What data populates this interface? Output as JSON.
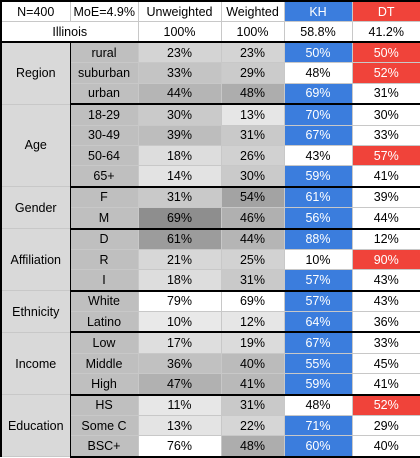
{
  "header": {
    "n_label": "N=400",
    "moe_label": "MoE=4.9%",
    "unweighted_label": "Unweighted",
    "weighted_label": "Weighted",
    "kh_label": "KH",
    "dt_label": "DT"
  },
  "subheader": {
    "state": "Illinois",
    "unweighted": "100%",
    "weighted": "100%",
    "kh": "58.8%",
    "dt": "41.2%"
  },
  "groups": [
    {
      "name": "Region",
      "rows": [
        {
          "label": "rural",
          "unweighted": "23%",
          "weighted": "23%",
          "kh": "50%",
          "dt": "50%",
          "unw_shade": "#d4d4d4",
          "w_shade": "#d4d4d4",
          "kh_color": "#3b7ddd",
          "dt_color": "#f0433a"
        },
        {
          "label": "suburban",
          "unweighted": "33%",
          "weighted": "29%",
          "kh": "48%",
          "dt": "52%",
          "unw_shade": "#c4c4c4",
          "w_shade": "#cbcbcb",
          "kh_color": "#ffffff",
          "dt_color": "#f0433a"
        },
        {
          "label": "urban",
          "unweighted": "44%",
          "weighted": "48%",
          "kh": "69%",
          "dt": "31%",
          "unw_shade": "#b5b5b5",
          "w_shade": "#adadad",
          "kh_color": "#3b7ddd",
          "dt_color": "#ffffff"
        }
      ]
    },
    {
      "name": "Age",
      "rows": [
        {
          "label": "18-29",
          "unweighted": "30%",
          "weighted": "13%",
          "kh": "70%",
          "dt": "30%",
          "unw_shade": "#cacaca",
          "w_shade": "#e6e6e6",
          "kh_color": "#3b7ddd",
          "dt_color": "#ffffff"
        },
        {
          "label": "30-49",
          "unweighted": "39%",
          "weighted": "31%",
          "kh": "67%",
          "dt": "33%",
          "unw_shade": "#bdbdbd",
          "w_shade": "#c9c9c9",
          "kh_color": "#3b7ddd",
          "dt_color": "#ffffff"
        },
        {
          "label": "50-64",
          "unweighted": "18%",
          "weighted": "26%",
          "kh": "43%",
          "dt": "57%",
          "unw_shade": "#dddddd",
          "w_shade": "#d1d1d1",
          "kh_color": "#ffffff",
          "dt_color": "#f0433a"
        },
        {
          "label": "65+",
          "unweighted": "14%",
          "weighted": "30%",
          "kh": "59%",
          "dt": "41%",
          "unw_shade": "#e3e3e3",
          "w_shade": "#cacaca",
          "kh_color": "#3b7ddd",
          "dt_color": "#ffffff"
        }
      ]
    },
    {
      "name": "Gender",
      "rows": [
        {
          "label": "F",
          "unweighted": "31%",
          "weighted": "54%",
          "kh": "61%",
          "dt": "39%",
          "unw_shade": "#c9c9c9",
          "w_shade": "#a3a3a3",
          "kh_color": "#3b7ddd",
          "dt_color": "#ffffff"
        },
        {
          "label": "M",
          "unweighted": "69%",
          "weighted": "46%",
          "kh": "56%",
          "dt": "44%",
          "unw_shade": "#8e8e8e",
          "w_shade": "#b0b0b0",
          "kh_color": "#3b7ddd",
          "dt_color": "#ffffff"
        }
      ]
    },
    {
      "name": "Affiliation",
      "rows": [
        {
          "label": "D",
          "unweighted": "61%",
          "weighted": "44%",
          "kh": "88%",
          "dt": "12%",
          "unw_shade": "#9c9c9c",
          "w_shade": "#b5b5b5",
          "kh_color": "#3b7ddd",
          "dt_color": "#ffffff"
        },
        {
          "label": "R",
          "unweighted": "21%",
          "weighted": "25%",
          "kh": "10%",
          "dt": "90%",
          "unw_shade": "#d7d7d7",
          "w_shade": "#d2d2d2",
          "kh_color": "#ffffff",
          "dt_color": "#f0433a"
        },
        {
          "label": "I",
          "unweighted": "18%",
          "weighted": "31%",
          "kh": "57%",
          "dt": "43%",
          "unw_shade": "#dddddd",
          "w_shade": "#c9c9c9",
          "kh_color": "#3b7ddd",
          "dt_color": "#ffffff"
        }
      ]
    },
    {
      "name": "Ethnicity",
      "rows": [
        {
          "label": "White",
          "unweighted": "79%",
          "weighted": "69%",
          "kh": "57%",
          "dt": "43%",
          "unw_shade": "#ffffff",
          "w_shade": "#ffffff",
          "kh_color": "#3b7ddd",
          "dt_color": "#ffffff"
        },
        {
          "label": "Latino",
          "unweighted": "10%",
          "weighted": "12%",
          "kh": "64%",
          "dt": "36%",
          "unw_shade": "#e9e9e9",
          "w_shade": "#e6e6e6",
          "kh_color": "#3b7ddd",
          "dt_color": "#ffffff"
        }
      ]
    },
    {
      "name": "Income",
      "rows": [
        {
          "label": "Low",
          "unweighted": "17%",
          "weighted": "19%",
          "kh": "67%",
          "dt": "33%",
          "unw_shade": "#dedede",
          "w_shade": "#dbdbdb",
          "kh_color": "#3b7ddd",
          "dt_color": "#ffffff"
        },
        {
          "label": "Middle",
          "unweighted": "36%",
          "weighted": "40%",
          "kh": "55%",
          "dt": "45%",
          "unw_shade": "#c1c1c1",
          "w_shade": "#bbbbbb",
          "kh_color": "#3b7ddd",
          "dt_color": "#ffffff"
        },
        {
          "label": "High",
          "unweighted": "47%",
          "weighted": "41%",
          "kh": "59%",
          "dt": "41%",
          "unw_shade": "#b1b1b1",
          "w_shade": "#b9b9b9",
          "kh_color": "#3b7ddd",
          "dt_color": "#ffffff"
        }
      ]
    },
    {
      "name": "Education",
      "rows": [
        {
          "label": "HS",
          "unweighted": "11%",
          "weighted": "31%",
          "kh": "48%",
          "dt": "52%",
          "unw_shade": "#e7e7e7",
          "w_shade": "#c9c9c9",
          "kh_color": "#ffffff",
          "dt_color": "#f0433a"
        },
        {
          "label": "Some C",
          "unweighted": "13%",
          "weighted": "22%",
          "kh": "71%",
          "dt": "29%",
          "unw_shade": "#e4e4e4",
          "w_shade": "#d6d6d6",
          "kh_color": "#3b7ddd",
          "dt_color": "#ffffff"
        },
        {
          "label": "BSC+",
          "unweighted": "76%",
          "weighted": "48%",
          "kh": "60%",
          "dt": "40%",
          "unw_shade": "#ffffff",
          "w_shade": "#adadad",
          "kh_color": "#3b7ddd",
          "dt_color": "#ffffff"
        }
      ]
    }
  ]
}
